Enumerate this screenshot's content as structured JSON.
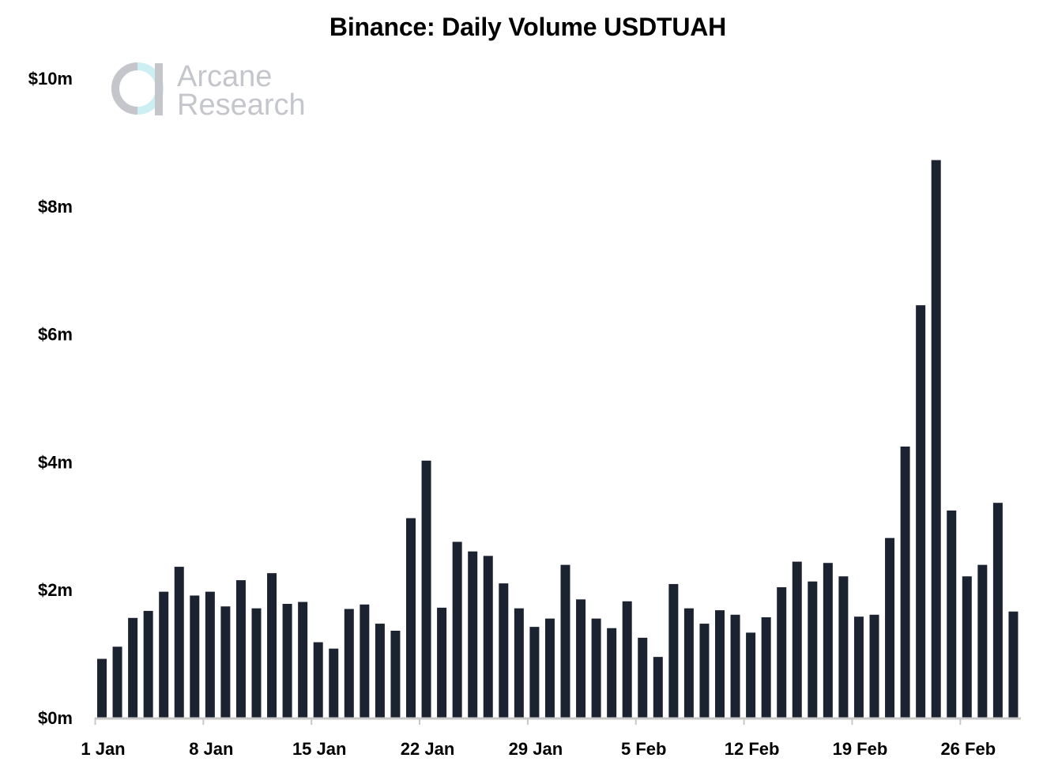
{
  "chart_data": {
    "type": "bar",
    "title": "Binance: Daily Volume USDTUAH",
    "xlabel": "",
    "ylabel": "",
    "ylim": [
      0,
      10
    ],
    "y_unit": "million USD",
    "yticks": [
      {
        "value": 0,
        "label": "$0m"
      },
      {
        "value": 2,
        "label": "$2m"
      },
      {
        "value": 4,
        "label": "$4m"
      },
      {
        "value": 6,
        "label": "$6m"
      },
      {
        "value": 8,
        "label": "$8m"
      },
      {
        "value": 10,
        "label": "$10m"
      }
    ],
    "xticks": [
      {
        "index": 0,
        "label": "1 Jan"
      },
      {
        "index": 7,
        "label": "8 Jan"
      },
      {
        "index": 14,
        "label": "15 Jan"
      },
      {
        "index": 21,
        "label": "22 Jan"
      },
      {
        "index": 28,
        "label": "29 Jan"
      },
      {
        "index": 35,
        "label": "5 Feb"
      },
      {
        "index": 42,
        "label": "12 Feb"
      },
      {
        "index": 49,
        "label": "19 Feb"
      },
      {
        "index": 56,
        "label": "26 Feb"
      }
    ],
    "categories": [
      "2022-01-01",
      "2022-01-02",
      "2022-01-03",
      "2022-01-04",
      "2022-01-05",
      "2022-01-06",
      "2022-01-07",
      "2022-01-08",
      "2022-01-09",
      "2022-01-10",
      "2022-01-11",
      "2022-01-12",
      "2022-01-13",
      "2022-01-14",
      "2022-01-15",
      "2022-01-16",
      "2022-01-17",
      "2022-01-18",
      "2022-01-19",
      "2022-01-20",
      "2022-01-21",
      "2022-01-22",
      "2022-01-23",
      "2022-01-24",
      "2022-01-25",
      "2022-01-26",
      "2022-01-27",
      "2022-01-28",
      "2022-01-29",
      "2022-01-30",
      "2022-01-31",
      "2022-02-01",
      "2022-02-02",
      "2022-02-03",
      "2022-02-04",
      "2022-02-05",
      "2022-02-06",
      "2022-02-07",
      "2022-02-08",
      "2022-02-09",
      "2022-02-10",
      "2022-02-11",
      "2022-02-12",
      "2022-02-13",
      "2022-02-14",
      "2022-02-15",
      "2022-02-16",
      "2022-02-17",
      "2022-02-18",
      "2022-02-19",
      "2022-02-20",
      "2022-02-21",
      "2022-02-22",
      "2022-02-23",
      "2022-02-24",
      "2022-02-25",
      "2022-02-26",
      "2022-02-27",
      "2022-02-28"
    ],
    "series": [
      {
        "values": [
          0.92,
          1.11,
          1.56,
          1.67,
          1.97,
          2.36,
          1.91,
          1.97,
          1.74,
          2.15,
          1.71,
          2.26,
          1.78,
          1.81,
          1.18,
          1.08,
          1.7,
          1.77,
          1.47,
          1.36,
          3.12,
          4.02,
          1.72,
          2.75,
          2.6,
          2.53,
          2.1,
          1.71,
          1.42,
          1.55,
          2.39,
          1.85,
          1.55,
          1.4,
          1.82,
          1.25,
          0.95,
          2.09,
          1.71,
          1.47,
          1.68,
          1.61,
          1.33,
          1.57,
          2.04,
          2.44,
          2.13,
          2.42,
          2.21,
          1.58,
          1.61,
          2.81,
          4.24,
          6.45,
          8.72,
          3.24,
          2.21,
          2.39,
          3.36
        ],
        "color": "#1b2230"
      }
    ],
    "trailing_value": 1.66,
    "grid": false,
    "legend": "none",
    "bar_color": "#1b2230",
    "axis_color": "#c8c8c8"
  },
  "watermark": {
    "line1": "Arcane",
    "line2": "Research",
    "icon": "arcane-logo-icon",
    "color": "#c4c6cc",
    "accent": "#cdeff3"
  }
}
